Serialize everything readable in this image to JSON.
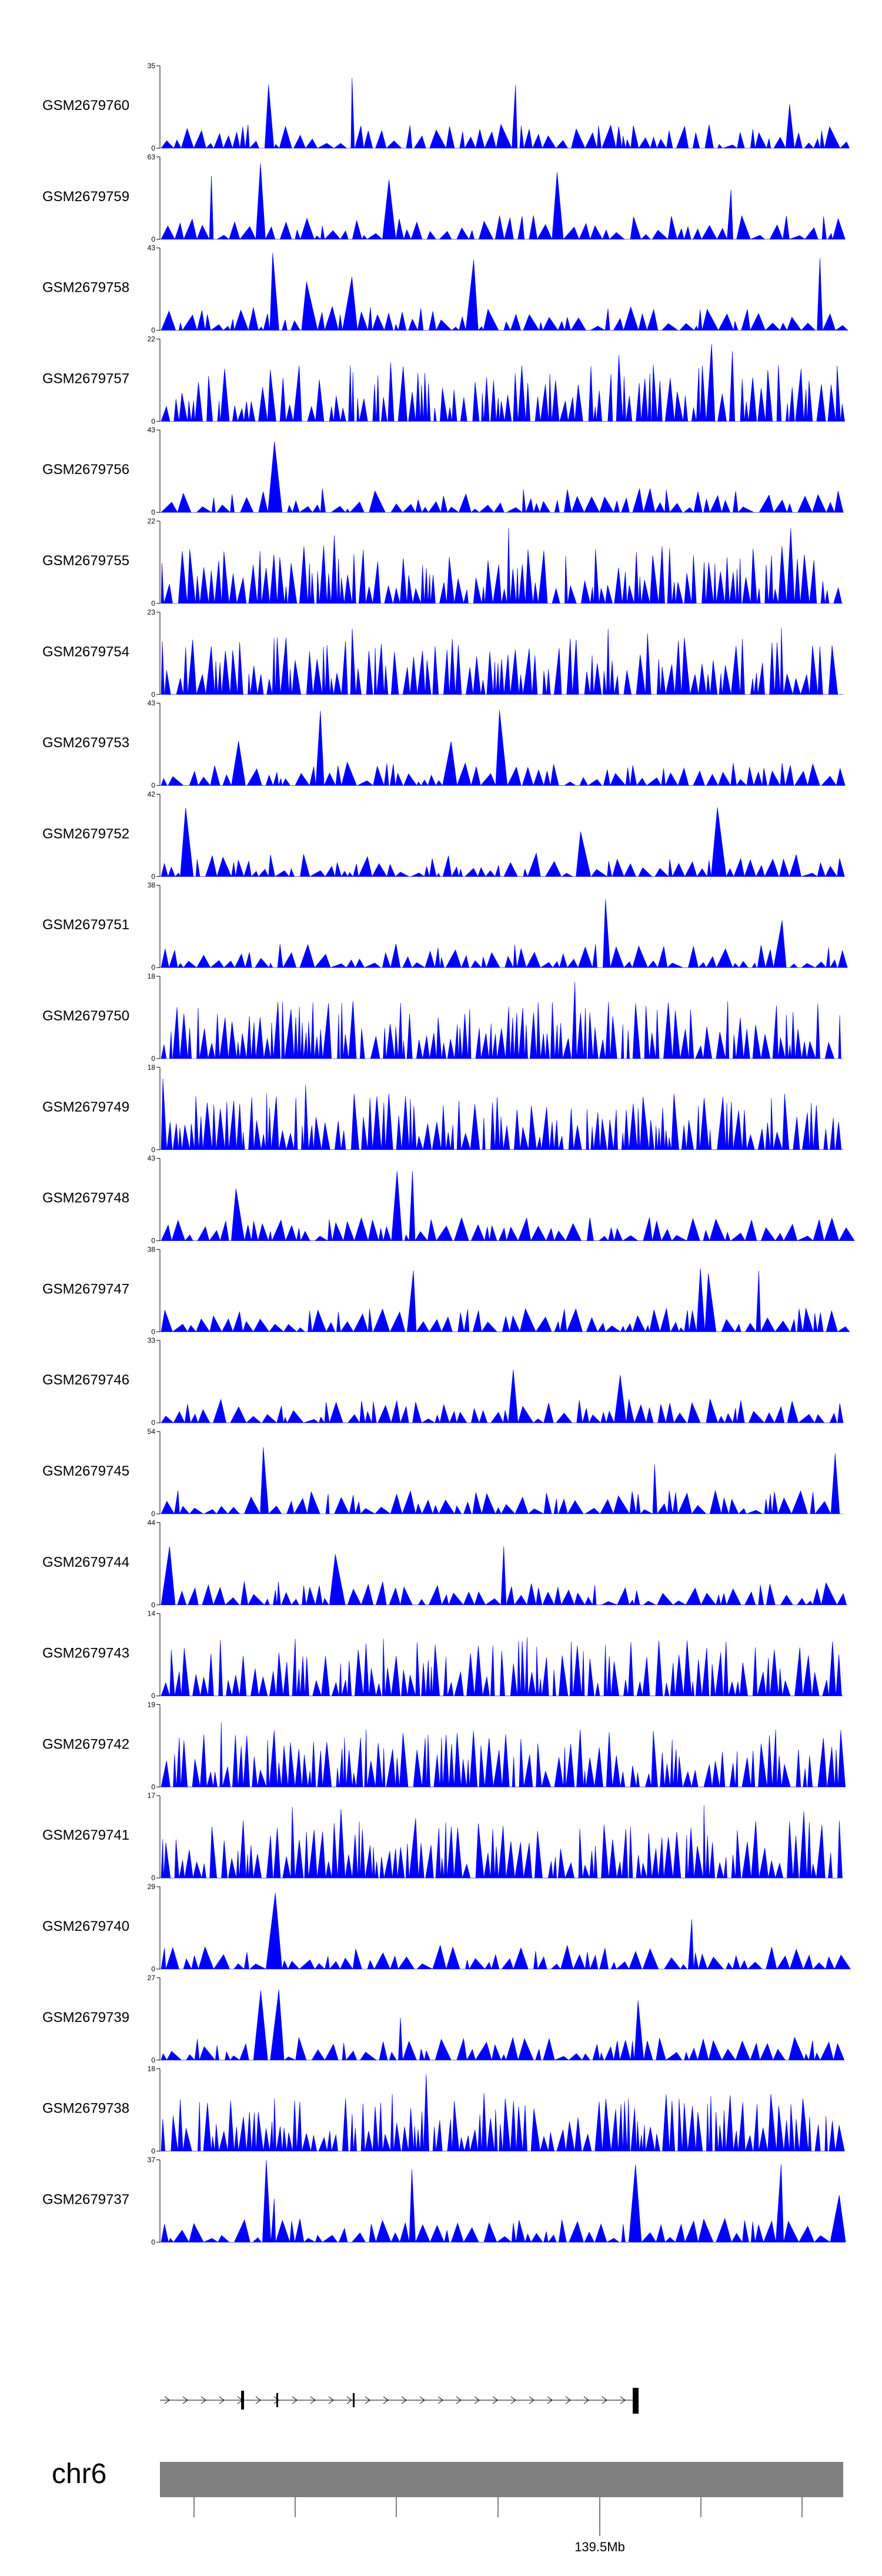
{
  "chart_data": {
    "type": "area",
    "chromosome": "chr6",
    "x_axis_label": "139.5Mb",
    "colors": {
      "signal": "#0000ff",
      "ideogram": "#808080",
      "axis": "#000000",
      "gene": "#000000"
    },
    "tracks": [
      {
        "name": "GSM2679760",
        "ymax": 35,
        "ymin": 0
      },
      {
        "name": "GSM2679759",
        "ymax": 63,
        "ymin": 0
      },
      {
        "name": "GSM2679758",
        "ymax": 43,
        "ymin": 0
      },
      {
        "name": "GSM2679757",
        "ymax": 22,
        "ymin": 0
      },
      {
        "name": "GSM2679756",
        "ymax": 43,
        "ymin": 0
      },
      {
        "name": "GSM2679755",
        "ymax": 22,
        "ymin": 0
      },
      {
        "name": "GSM2679754",
        "ymax": 23,
        "ymin": 0
      },
      {
        "name": "GSM2679753",
        "ymax": 43,
        "ymin": 0
      },
      {
        "name": "GSM2679752",
        "ymax": 42,
        "ymin": 0
      },
      {
        "name": "GSM2679751",
        "ymax": 38,
        "ymin": 0
      },
      {
        "name": "GSM2679750",
        "ymax": 18,
        "ymin": 0
      },
      {
        "name": "GSM2679749",
        "ymax": 18,
        "ymin": 0
      },
      {
        "name": "GSM2679748",
        "ymax": 43,
        "ymin": 0
      },
      {
        "name": "GSM2679747",
        "ymax": 38,
        "ymin": 0
      },
      {
        "name": "GSM2679746",
        "ymax": 33,
        "ymin": 0
      },
      {
        "name": "GSM2679745",
        "ymax": 54,
        "ymin": 0
      },
      {
        "name": "GSM2679744",
        "ymax": 44,
        "ymin": 0
      },
      {
        "name": "GSM2679743",
        "ymax": 14,
        "ymin": 0
      },
      {
        "name": "GSM2679742",
        "ymax": 19,
        "ymin": 0
      },
      {
        "name": "GSM2679741",
        "ymax": 17,
        "ymin": 0
      },
      {
        "name": "GSM2679740",
        "ymax": 29,
        "ymin": 0
      },
      {
        "name": "GSM2679739",
        "ymax": 27,
        "ymin": 0
      },
      {
        "name": "GSM2679738",
        "ymax": 18,
        "ymin": 0
      },
      {
        "name": "GSM2679737",
        "ymax": 37,
        "ymin": 0
      }
    ]
  }
}
